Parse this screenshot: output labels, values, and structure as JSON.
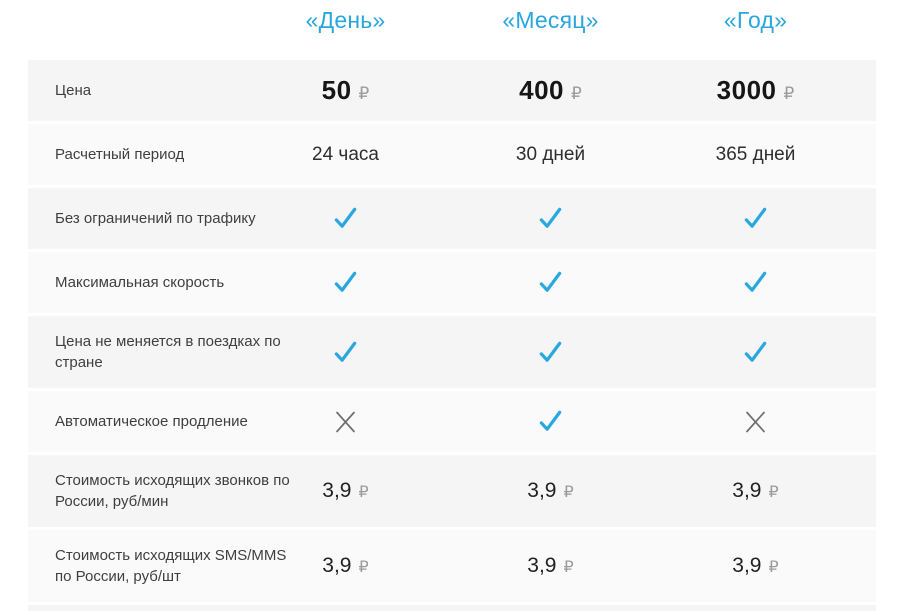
{
  "colors": {
    "accent_blue": "#29a6de",
    "check_blue": "#29a8e0",
    "cross_gray": "#6f6f6f",
    "row_dark": "#f5f5f6",
    "row_light": "#fafafa"
  },
  "currency_symbol": "₽",
  "table": {
    "columns": [
      {
        "label": "«День»"
      },
      {
        "label": "«Месяц»"
      },
      {
        "label": "«Год»"
      }
    ],
    "rows": [
      {
        "label": "Цена",
        "type": "price",
        "values": [
          "50",
          "400",
          "3000"
        ]
      },
      {
        "label": "Расчетный период",
        "type": "text",
        "values": [
          "24 часа",
          "30 дней",
          "365 дней"
        ]
      },
      {
        "label": "Без ограничений по трафику",
        "type": "bool",
        "values": [
          true,
          true,
          true
        ]
      },
      {
        "label": "Максимальная скорость",
        "type": "bool",
        "values": [
          true,
          true,
          true
        ]
      },
      {
        "label": "Цена не меняется в поездках по стране",
        "type": "bool",
        "values": [
          true,
          true,
          true
        ]
      },
      {
        "label": "Автоматическое продление",
        "type": "bool",
        "values": [
          false,
          true,
          false
        ]
      },
      {
        "label": "Стоимость исходящих звонков по России, руб/мин",
        "type": "price_small",
        "values": [
          "3,9",
          "3,9",
          "3,9"
        ]
      },
      {
        "label": "Стоимость исходящих SMS/MMS по России, руб/шт",
        "type": "price_small",
        "values": [
          "3,9",
          "3,9",
          "3,9"
        ]
      }
    ]
  }
}
